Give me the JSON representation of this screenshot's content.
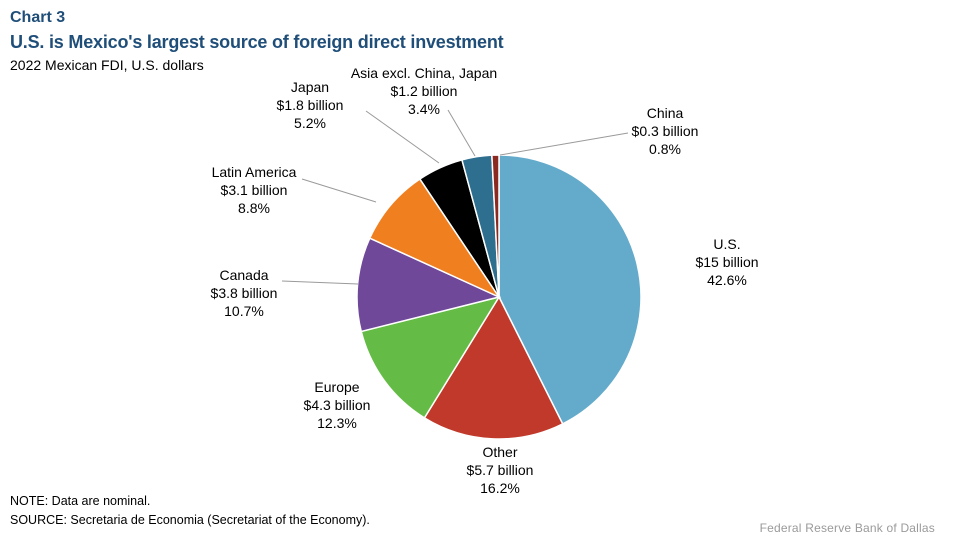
{
  "header": {
    "chart_number": "Chart 3",
    "title": "U.S. is Mexico's largest source of foreign direct investment",
    "subtitle": "2022 Mexican FDI, U.S. dollars"
  },
  "footer": {
    "note": "NOTE: Data are nominal.",
    "source": "SOURCE: Secretaria de Economia (Secretariat of the Economy).",
    "credit": "Federal Reserve  Bank of Dallas"
  },
  "chart_data": {
    "type": "pie",
    "title": "U.S. is Mexico's largest source of foreign direct investment",
    "subtitle": "2022 Mexican FDI, U.S. dollars",
    "unit": "billion U.S. dollars",
    "slices": [
      {
        "name": "U.S.",
        "value": 15,
        "value_label": "$15 billion",
        "percent": 42.6,
        "percent_label": "42.6%",
        "color": "#64abcb"
      },
      {
        "name": "Other",
        "value": 5.7,
        "value_label": "$5.7 billion",
        "percent": 16.2,
        "percent_label": "16.2%",
        "color": "#c0392b"
      },
      {
        "name": "Europe",
        "value": 4.3,
        "value_label": "$4.3 billion",
        "percent": 12.3,
        "percent_label": "12.3%",
        "color": "#64bc46"
      },
      {
        "name": "Canada",
        "value": 3.8,
        "value_label": "$3.8 billion",
        "percent": 10.7,
        "percent_label": "10.7%",
        "color": "#70489a"
      },
      {
        "name": "Latin America",
        "value": 3.1,
        "value_label": "$3.1 billion",
        "percent": 8.8,
        "percent_label": "8.8%",
        "color": "#f07f1f"
      },
      {
        "name": "Japan",
        "value": 1.8,
        "value_label": "$1.8 billion",
        "percent": 5.2,
        "percent_label": "5.2%",
        "color": "#000000"
      },
      {
        "name": "Asia excl. China, Japan",
        "value": 1.2,
        "value_label": "$1.2 billion",
        "percent": 3.4,
        "percent_label": "3.4%",
        "color": "#2e6e8e"
      },
      {
        "name": "China",
        "value": 0.3,
        "value_label": "$0.3 billion",
        "percent": 0.8,
        "percent_label": "0.8%",
        "color": "#8b2a20"
      }
    ]
  }
}
